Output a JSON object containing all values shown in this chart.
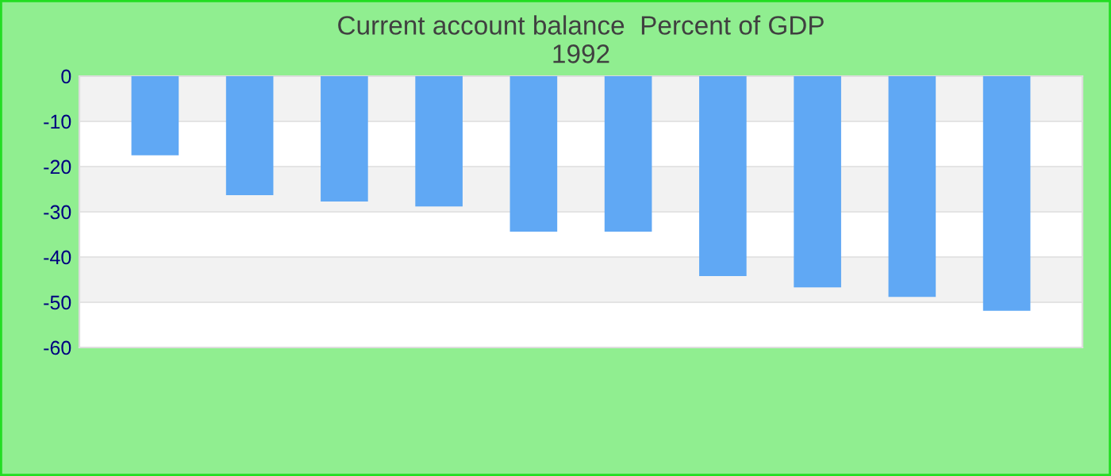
{
  "chart_data": {
    "type": "bar",
    "title": "Current account balance  Percent of GDP\n1992",
    "categories": [
      null,
      null,
      null,
      null,
      null,
      null,
      null,
      null,
      null,
      null
    ],
    "values": [
      -17.5,
      -26.3,
      -27.7,
      -28.8,
      -34.4,
      -34.4,
      -44.2,
      -46.7,
      -48.8,
      -51.9
    ],
    "color": "#60a8f4",
    "ylim": [
      -60,
      0
    ],
    "yticks": [
      -60,
      -50,
      -40,
      -30,
      -20,
      -10,
      0
    ],
    "grid": "y"
  }
}
